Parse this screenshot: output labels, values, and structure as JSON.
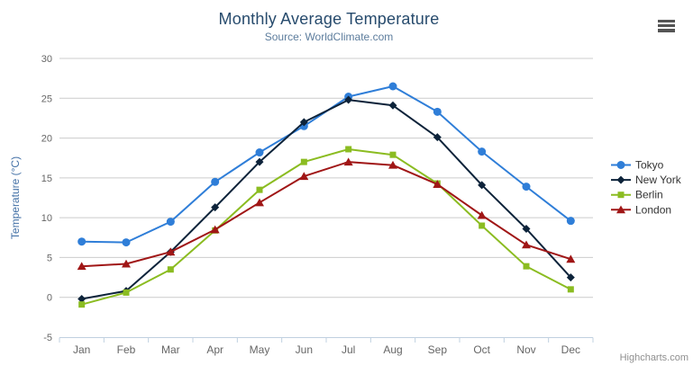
{
  "chart": {
    "title": "Monthly Average Temperature",
    "subtitle": "Source: WorldClimate.com",
    "credit": "Highcharts.com",
    "colors": {
      "grid": "#cccccc",
      "axis_line": "#c0d0e0",
      "tick_label": "#666666",
      "title": "#274b6d",
      "subtitle": "#5d7d9d",
      "axis_title": "#4572a7",
      "legend_text": "#333333",
      "menu_icon": "#545454",
      "credit": "#8f8f8f"
    }
  },
  "chart_data": {
    "type": "line",
    "title": "Monthly Average Temperature",
    "subtitle": "Source: WorldClimate.com",
    "categories": [
      "Jan",
      "Feb",
      "Mar",
      "Apr",
      "May",
      "Jun",
      "Jul",
      "Aug",
      "Sep",
      "Oct",
      "Nov",
      "Dec"
    ],
    "series": [
      {
        "name": "Tokyo",
        "color": "#2f7ed8",
        "marker": "circle",
        "values": [
          7.0,
          6.9,
          9.5,
          14.5,
          18.2,
          21.5,
          25.2,
          26.5,
          23.3,
          18.3,
          13.9,
          9.6
        ]
      },
      {
        "name": "New York",
        "color": "#0d233a",
        "marker": "diamond",
        "values": [
          -0.2,
          0.8,
          5.7,
          11.3,
          17.0,
          22.0,
          24.8,
          24.1,
          20.1,
          14.1,
          8.6,
          2.5
        ]
      },
      {
        "name": "Berlin",
        "color": "#8bbc21",
        "marker": "square",
        "values": [
          -0.9,
          0.6,
          3.5,
          8.4,
          13.5,
          17.0,
          18.6,
          17.9,
          14.3,
          9.0,
          3.9,
          1.0
        ]
      },
      {
        "name": "London",
        "color": "#a01616",
        "marker": "triangle",
        "values": [
          3.9,
          4.2,
          5.7,
          8.5,
          11.9,
          15.2,
          17.0,
          16.6,
          14.2,
          10.3,
          6.6,
          4.8
        ]
      }
    ],
    "xlabel": "",
    "ylabel": "Temperature (°C)",
    "ylim": [
      -5,
      30
    ],
    "yticks": [
      -5,
      0,
      5,
      10,
      15,
      20,
      25,
      30
    ],
    "grid": true,
    "legend_position": "right"
  }
}
